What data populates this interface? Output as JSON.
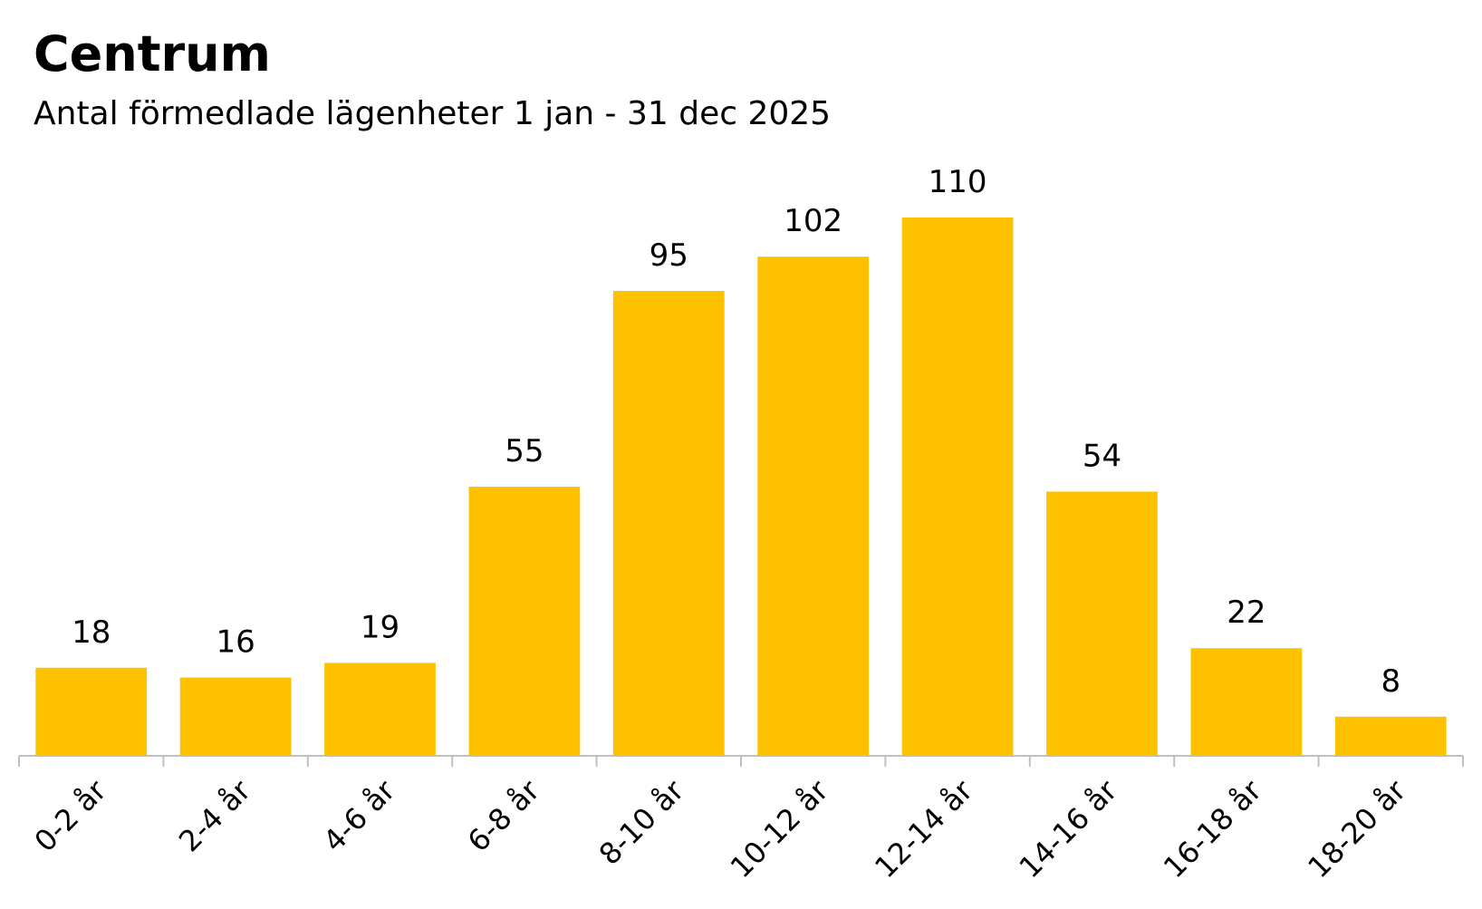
{
  "chart_data": {
    "type": "bar",
    "title": "Centrum",
    "subtitle": "Antal förmedlade lägenheter 1 jan - 31 dec 2025",
    "categories": [
      "0-2 år",
      "2-4 år",
      "4-6 år",
      "6-8 år",
      "8-10 år",
      "10-12 år",
      "12-14 år",
      "14-16 år",
      "16-18 år",
      "18-20 år"
    ],
    "values": [
      18,
      16,
      19,
      55,
      95,
      102,
      110,
      54,
      22,
      8
    ],
    "color": "#FDC100"
  }
}
